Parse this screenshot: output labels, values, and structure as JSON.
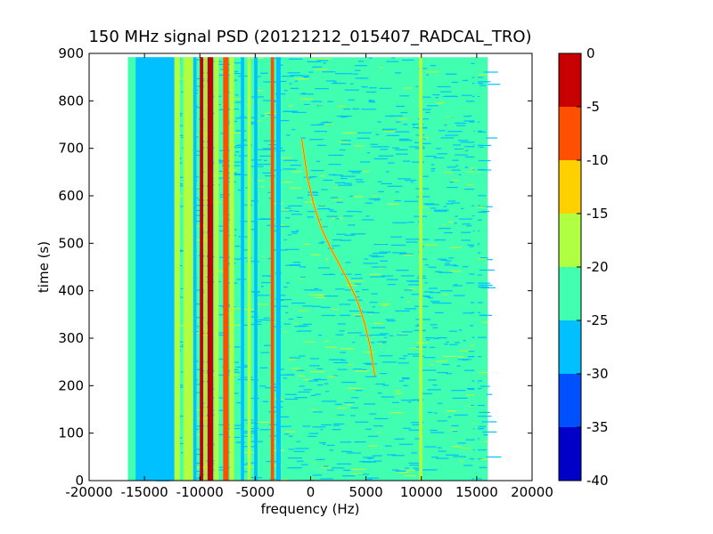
{
  "chart_data": {
    "type": "heatmap",
    "title": "150 MHz signal PSD (20121212_015407_RADCAL_TRO)",
    "xlabel": "frequency (Hz)",
    "ylabel": "time (s)",
    "xlim": [
      -20000,
      20000
    ],
    "ylim": [
      0,
      900
    ],
    "x_ticks": [
      -20000,
      -15000,
      -10000,
      -5000,
      0,
      5000,
      10000,
      15000,
      20000
    ],
    "y_ticks": [
      0,
      100,
      200,
      300,
      400,
      500,
      600,
      700,
      800,
      900
    ],
    "data_extent": {
      "x": [
        -16500,
        16000
      ],
      "y": [
        0,
        892
      ]
    },
    "colorbar": {
      "range": [
        -40,
        0
      ],
      "ticks": [
        0,
        -5,
        -10,
        -15,
        -20,
        -25,
        -30,
        -35,
        -40
      ],
      "levels": [
        {
          "from": -40,
          "to": -35,
          "color": "#0000c8"
        },
        {
          "from": -35,
          "to": -30,
          "color": "#0050ff"
        },
        {
          "from": -30,
          "to": -25,
          "color": "#00c0ff"
        },
        {
          "from": -25,
          "to": -20,
          "color": "#40ffb0"
        },
        {
          "from": -20,
          "to": -15,
          "color": "#b0ff40"
        },
        {
          "from": -15,
          "to": -10,
          "color": "#ffd000"
        },
        {
          "from": -10,
          "to": -5,
          "color": "#ff5000"
        },
        {
          "from": -5,
          "to": 0,
          "color": "#c80000"
        }
      ]
    },
    "background_level": -22,
    "vertical_bands": [
      {
        "x": [
          -16500,
          -15800
        ],
        "level": -20
      },
      {
        "x": [
          -15800,
          -12300
        ],
        "level": -28
      },
      {
        "x": [
          -12300,
          -11800
        ],
        "level": -18
      },
      {
        "x": [
          -11500,
          -10600
        ],
        "level": -18
      },
      {
        "x": [
          -10600,
          -10300
        ],
        "level": -26
      },
      {
        "x": [
          -10000,
          -9700
        ],
        "level": -3
      },
      {
        "x": [
          -9600,
          -9400
        ],
        "level": -12
      },
      {
        "x": [
          -9300,
          -8800
        ],
        "level": -2
      },
      {
        "x": [
          -8700,
          -8300
        ],
        "level": -18
      },
      {
        "x": [
          -7900,
          -7400
        ],
        "level": -8
      },
      {
        "x": [
          -7300,
          -6900
        ],
        "level": -18
      },
      {
        "x": [
          -6300,
          -6000
        ],
        "level": -28
      },
      {
        "x": [
          -5700,
          -5400
        ],
        "level": -17
      },
      {
        "x": [
          -5100,
          -4800
        ],
        "level": -28
      },
      {
        "x": [
          -3600,
          -3300
        ],
        "level": -8
      },
      {
        "x": [
          -3100,
          -2700
        ],
        "level": -27
      },
      {
        "x": [
          9800,
          10100
        ],
        "level": -17
      },
      {
        "x": [
          14800,
          15100
        ],
        "level": -20
      }
    ],
    "signal_trace": {
      "level": -12,
      "points": [
        [
          -800,
          720
        ],
        [
          -300,
          640
        ],
        [
          300,
          580
        ],
        [
          1000,
          530
        ],
        [
          1800,
          490
        ],
        [
          2600,
          455
        ],
        [
          3400,
          420
        ],
        [
          4200,
          380
        ],
        [
          4900,
          330
        ],
        [
          5400,
          280
        ],
        [
          5800,
          220
        ]
      ]
    }
  }
}
